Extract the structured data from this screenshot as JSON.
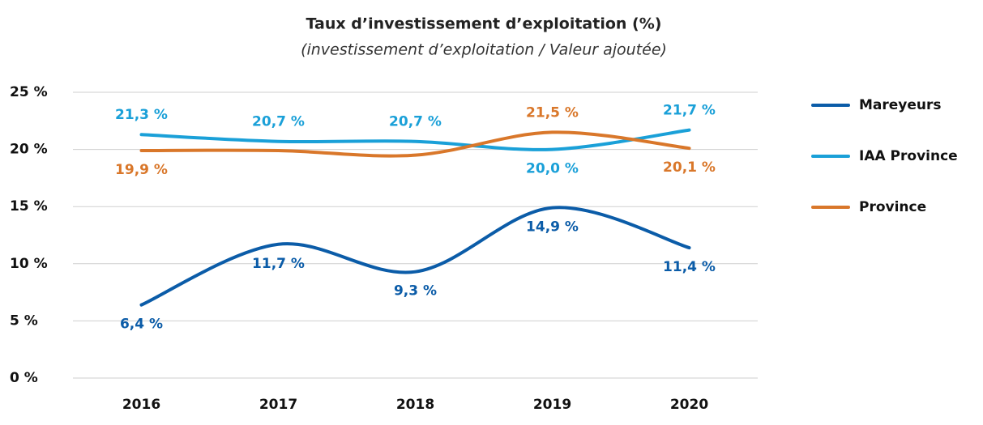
{
  "chart_data": {
    "type": "line",
    "title": "Taux d’investissement d’exploitation (%)",
    "subtitle": "(investissement d’exploitation / Valeur ajoutée)",
    "categories": [
      "2016",
      "2017",
      "2018",
      "2019",
      "2020"
    ],
    "series": [
      {
        "name": "Mareyeurs",
        "color": "#0b5ca8",
        "values": [
          6.4,
          11.7,
          9.3,
          14.9,
          11.4
        ],
        "value_labels": [
          "6,4 %",
          "11,7 %",
          "9,3 %",
          "14,9 %",
          "11,4 %"
        ]
      },
      {
        "name": "IAA Province",
        "color": "#1aa0d8",
        "values": [
          21.3,
          20.7,
          20.7,
          20.0,
          21.7
        ],
        "value_labels": [
          "21,3 %",
          "20,7 %",
          "20,7 %",
          "20,0 %",
          "21,7 %"
        ]
      },
      {
        "name": "Province",
        "color": "#d9772a",
        "values": [
          19.9,
          19.9,
          19.5,
          21.5,
          20.1
        ],
        "value_labels": [
          "19,9 %",
          null,
          null,
          "21,5 %",
          "20,1 %"
        ]
      }
    ],
    "ylim": [
      0,
      25
    ],
    "yticks": [
      {
        "value": 0,
        "label": "0 %"
      },
      {
        "value": 5,
        "label": "5 %"
      },
      {
        "value": 10,
        "label": "10 %"
      },
      {
        "value": 15,
        "label": "15 %"
      },
      {
        "value": 20,
        "label": "20 %"
      },
      {
        "value": 25,
        "label": "25 %"
      }
    ],
    "grid": true,
    "legend": "right"
  }
}
